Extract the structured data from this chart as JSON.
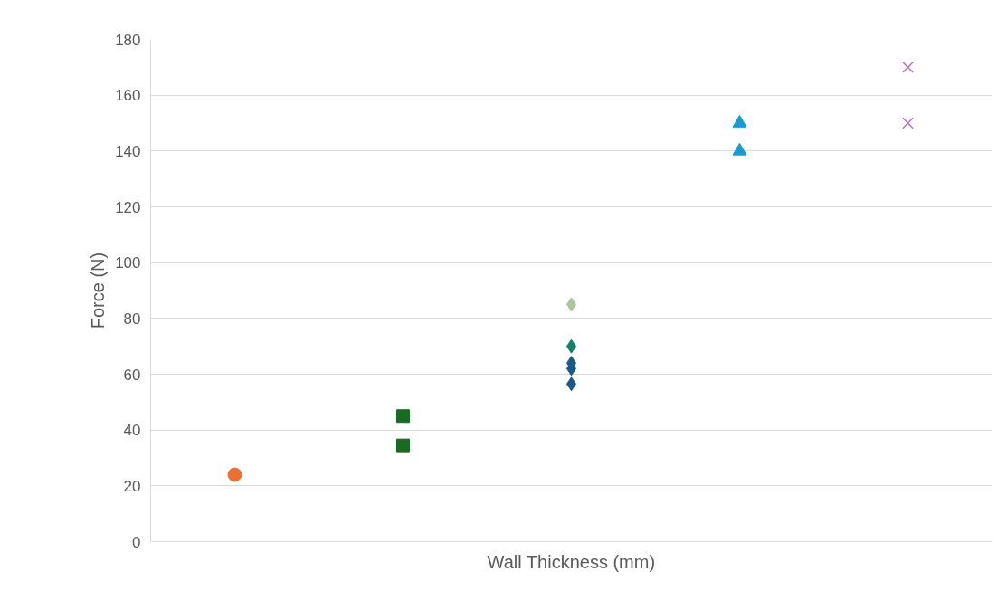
{
  "chart_data": {
    "type": "scatter",
    "xlabel": "Wall Thickness (mm)",
    "ylabel": "Force (N)",
    "categories": [
      null,
      null,
      null,
      null,
      null
    ],
    "ylim": [
      0,
      180
    ],
    "yticks": [
      0,
      20,
      40,
      60,
      80,
      100,
      120,
      140,
      160,
      180
    ],
    "grid": "y",
    "series": [
      {
        "color": "#e97132",
        "marker": "circle",
        "values": [
          24,
          null,
          null,
          null,
          null
        ]
      },
      {
        "color": "#196b24",
        "marker": "square",
        "values": [
          null,
          45,
          null,
          null,
          null
        ]
      },
      {
        "color": "#196b24",
        "marker": "square",
        "values": [
          null,
          34.5,
          null,
          null,
          null
        ]
      },
      {
        "color": "#1a5a8a",
        "marker": "diamond",
        "values": [
          null,
          null,
          56.5,
          null,
          null
        ]
      },
      {
        "color": "#1a5a8a",
        "marker": "diamond",
        "values": [
          null,
          null,
          62,
          null,
          null
        ]
      },
      {
        "color": "#1a5a8a",
        "marker": "diamond",
        "values": [
          null,
          null,
          64,
          null,
          null
        ]
      },
      {
        "color": "#13806e",
        "marker": "diamond",
        "values": [
          null,
          null,
          70,
          null,
          null
        ]
      },
      {
        "color": "#a9c79a",
        "marker": "diamond",
        "values": [
          null,
          null,
          85,
          null,
          null
        ]
      },
      {
        "color": "#1a9bd0",
        "marker": "triangle",
        "values": [
          null,
          null,
          null,
          150,
          null
        ]
      },
      {
        "color": "#1a9bd0",
        "marker": "triangle",
        "values": [
          null,
          null,
          null,
          140,
          null
        ]
      },
      {
        "color": "#b46fc0",
        "marker": "cross",
        "values": [
          null,
          null,
          null,
          null,
          170
        ]
      },
      {
        "color": "#b46fc0",
        "marker": "cross",
        "values": [
          null,
          null,
          null,
          null,
          150
        ]
      }
    ]
  }
}
